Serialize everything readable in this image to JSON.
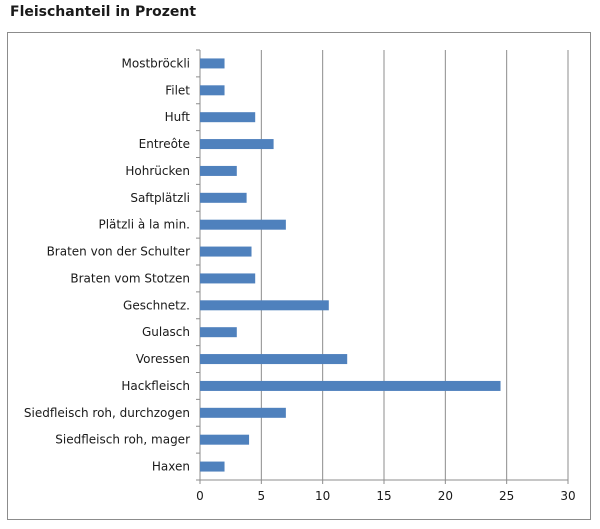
{
  "chart_data": {
    "type": "bar",
    "orientation": "horizontal",
    "title": "Fleischanteil in Prozent",
    "xlabel": "",
    "ylabel": "",
    "xlim": [
      0,
      30
    ],
    "xticks": [
      "0",
      "5",
      "10",
      "15",
      "20",
      "25",
      "30"
    ],
    "grid": "vertical",
    "legend": "none",
    "bar_color": "#4f81bd",
    "categories": [
      "Mostbröckli",
      "Filet",
      "Huft",
      "Entreôte",
      "Hohrücken",
      "Saftplätzli",
      "Plätzli à la min.",
      "Braten von der Schulter",
      "Braten vom Stotzen",
      "Geschnetz.",
      "Gulasch",
      "Voressen",
      "Hackfleisch",
      "Siedfleisch roh, durchzogen",
      "Siedfleisch roh, mager",
      "Haxen"
    ],
    "values": [
      2,
      2,
      4.5,
      6,
      3,
      3.8,
      7,
      4.2,
      4.5,
      10.5,
      3,
      12,
      24.5,
      7,
      4,
      2
    ]
  }
}
